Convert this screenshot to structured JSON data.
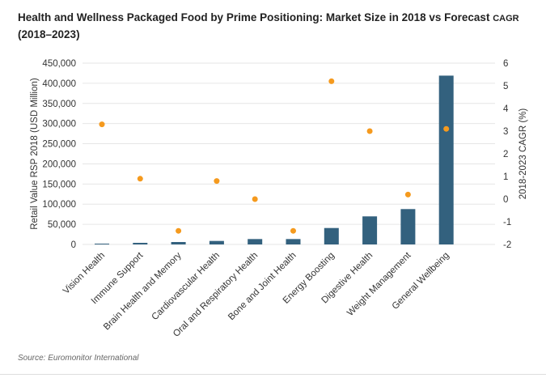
{
  "chart_data": {
    "type": "bar+scatter",
    "title": "Health and Wellness Packaged Food by Prime Positioning: Market Size in 2018 vs Forecast",
    "title_suffix": "CAGR",
    "title_line2": "(2018–2023)",
    "categories": [
      "Vision Health",
      "Immune Support",
      "Brain Health and Memory",
      "Cardiovascular Health",
      "Oral and Respiratory Health",
      "Bone and Joint Health",
      "Energy Boosting",
      "Digestive Health",
      "Weight Management",
      "General Wellbeing"
    ],
    "series": [
      {
        "axis": "left",
        "type": "bar",
        "color": "#33617e",
        "values": [
          2000,
          4000,
          6000,
          8700,
          13400,
          13400,
          40800,
          69700,
          87800,
          419000
        ]
      },
      {
        "axis": "right",
        "type": "scatter",
        "color": "#f59a1e",
        "values": [
          3.3,
          0.9,
          -1.4,
          0.8,
          0.0,
          -1.4,
          5.2,
          3.0,
          0.2,
          3.1
        ]
      }
    ],
    "ylabel": "Retail Value RSP 2018 (USD Million)",
    "ylim": [
      0,
      450000
    ],
    "yticks": [
      "0",
      "50,000",
      "100,000",
      "150,000",
      "200,000",
      "250,000",
      "300,000",
      "350,000",
      "400,000",
      "450,000"
    ],
    "y2label": "2018-2023 CAGR (%)",
    "y2lim": [
      -2,
      6
    ],
    "y2ticks": [
      "-2",
      "-1",
      "0",
      "1",
      "2",
      "3",
      "4",
      "5",
      "6"
    ],
    "grid": true
  },
  "source": "Source: Euromonitor International"
}
